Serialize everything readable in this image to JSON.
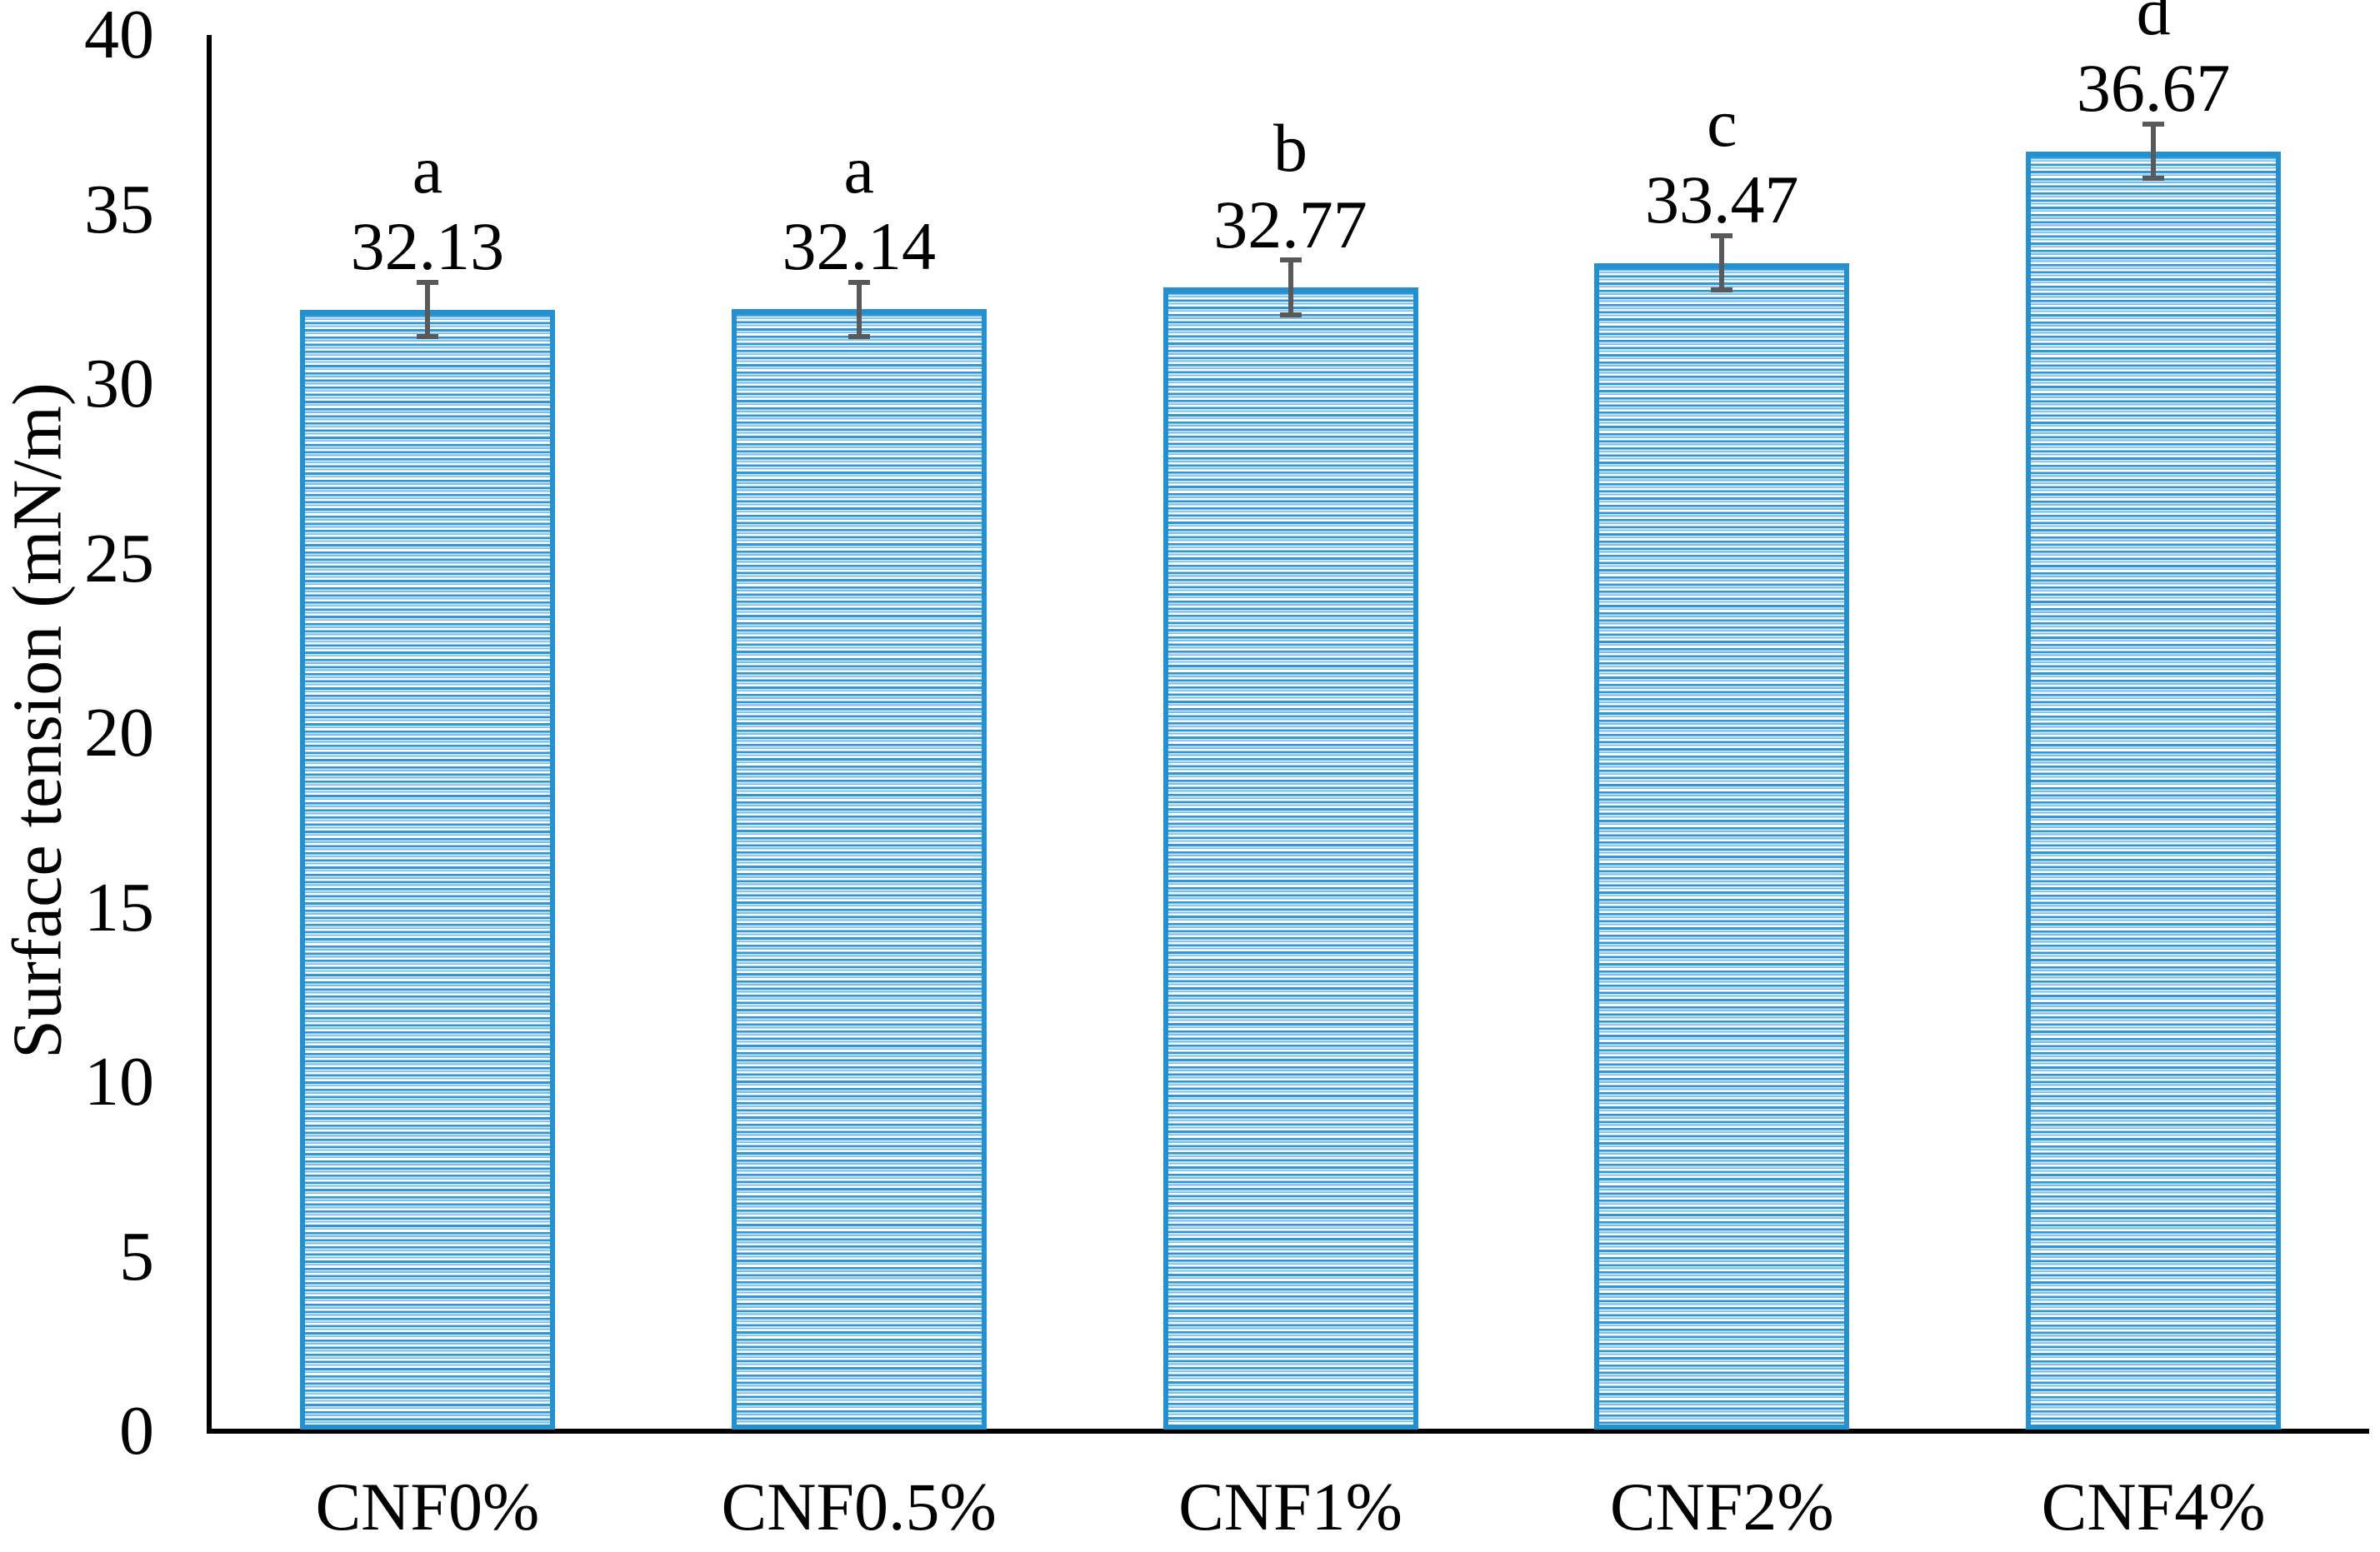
{
  "figure": {
    "background": "#FFFFFF",
    "text_color": "#000000",
    "axis_color": "#000000"
  },
  "chart_data": {
    "type": "bar",
    "title": "",
    "xlabel": "",
    "ylabel": "Surface tension (mN/m)",
    "ylim": [
      0,
      40
    ],
    "ytick_interval": 5,
    "ytick_labels": [
      "0",
      "5",
      "10",
      "15",
      "20",
      "25",
      "30",
      "35",
      "40"
    ],
    "grid": false,
    "legend_position": "none",
    "categories": [
      "CNF0%",
      "CNF0.5%",
      "CNF1%",
      "CNF2%",
      "CNF4%"
    ],
    "values": [
      32.13,
      32.14,
      32.77,
      33.47,
      36.67
    ],
    "value_labels": [
      "32.13",
      "32.14",
      "32.77",
      "33.47",
      "36.67"
    ],
    "significance_letters": [
      "a",
      "a",
      "b",
      "c",
      "d"
    ],
    "error_bars": {
      "plus_minus": [
        0.85,
        0.85,
        0.85,
        0.85,
        0.85
      ],
      "color": "#58595B"
    },
    "bar_style": {
      "fill_pattern": "horizontal-stripes",
      "stripe_color_strong": "#2E96D4",
      "stripe_color_light": "#7CBEE8",
      "stripe_background": "#FFFFFF",
      "border_color": "#2490D0"
    }
  }
}
